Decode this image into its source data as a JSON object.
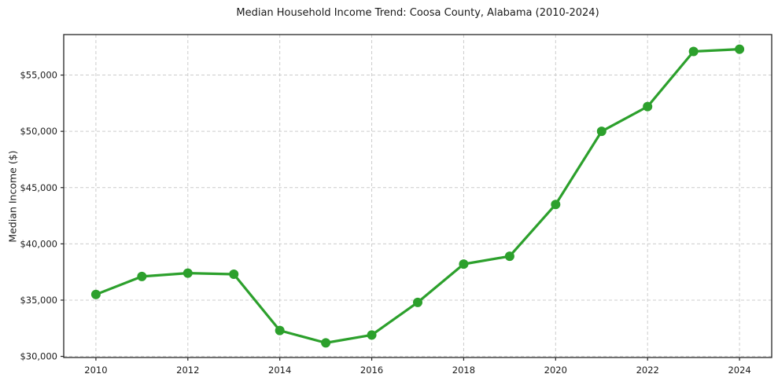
{
  "chart_data": {
    "type": "line",
    "title": "Median Household Income Trend: Coosa County, Alabama (2010-2024)",
    "xlabel": "",
    "ylabel": "Median Income ($)",
    "series": [
      {
        "name": "Median Household Income",
        "x": [
          2010,
          2011,
          2012,
          2013,
          2014,
          2015,
          2016,
          2017,
          2018,
          2019,
          2020,
          2021,
          2022,
          2023,
          2024
        ],
        "values": [
          35500,
          37100,
          37400,
          37300,
          32300,
          31200,
          31900,
          34800,
          38200,
          38900,
          43500,
          50000,
          52200,
          57100,
          57300
        ]
      }
    ],
    "xlim": [
      2009.3,
      2024.7
    ],
    "ylim": [
      29900,
      58600
    ],
    "xticks": [
      2010,
      2012,
      2014,
      2016,
      2018,
      2020,
      2022,
      2024
    ],
    "xtick_labels": [
      "2010",
      "2012",
      "2014",
      "2016",
      "2018",
      "2020",
      "2022",
      "2024"
    ],
    "yticks": [
      30000,
      35000,
      40000,
      45000,
      50000,
      55000
    ],
    "ytick_labels": [
      "$30,000",
      "$35,000",
      "$40,000",
      "$45,000",
      "$50,000",
      "$55,000"
    ],
    "grid": true,
    "grid_style": "dashed",
    "legend": false,
    "marker": "circle",
    "colors": {
      "line": "#2ca02c",
      "marker": "#2ca02c",
      "grid": "#cccccc",
      "frame": "#262626",
      "text": "#1a1a1a",
      "background": "#ffffff"
    }
  }
}
